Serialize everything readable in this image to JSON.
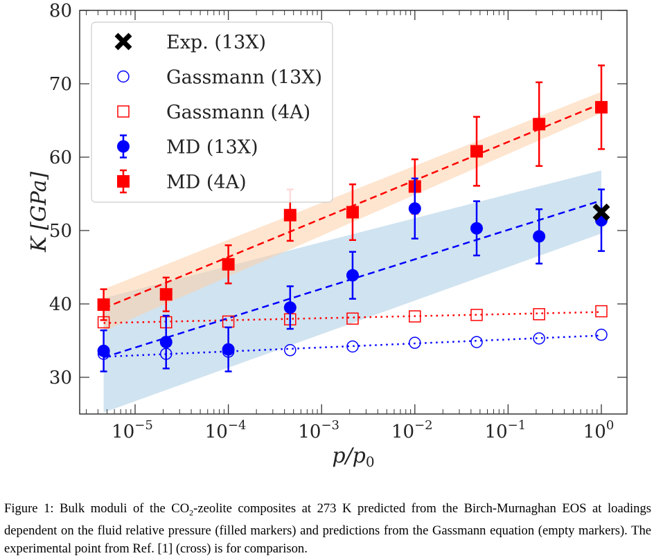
{
  "chart_data": {
    "type": "scatter",
    "xscale": "log",
    "xlim": [
      2.6e-06,
      1.9
    ],
    "ylim": [
      25,
      80
    ],
    "xlabel": "p/p0",
    "ylabel": "K [GPa]",
    "x_ticks": [
      {
        "exp": "−5",
        "value": 1e-05
      },
      {
        "exp": "−4",
        "value": 0.0001
      },
      {
        "exp": "−3",
        "value": 0.001
      },
      {
        "exp": "−2",
        "value": 0.01
      },
      {
        "exp": "−1",
        "value": 0.1
      },
      {
        "exp": "0",
        "value": 1
      }
    ],
    "y_ticks": [
      "30",
      "40",
      "50",
      "60",
      "70",
      "80"
    ],
    "legend_position": "top-left",
    "grid": false,
    "x": [
      4.6e-06,
      2.15e-05,
      0.0001,
      0.00046,
      0.00215,
      0.01,
      0.046,
      0.215,
      1
    ],
    "series": [
      {
        "name": "Exp. (13X)",
        "marker": "x",
        "color": "#000000",
        "x": [
          1
        ],
        "values": [
          52.5
        ]
      },
      {
        "name": "Gassmann (13X)",
        "marker": "open-circle",
        "color": "#0000ff",
        "values": [
          33.2,
          33.2,
          33.5,
          33.7,
          34.2,
          34.7,
          34.8,
          35.3,
          35.8
        ],
        "fit": {
          "style": "dotted",
          "from": 32.8,
          "to": 35.7
        }
      },
      {
        "name": "Gassmann (4A)",
        "marker": "open-square",
        "color": "#ff0000",
        "values": [
          37.5,
          37.5,
          37.6,
          37.9,
          38.0,
          38.3,
          38.5,
          38.6,
          39.0
        ],
        "fit": {
          "style": "dotted",
          "from": 37.4,
          "to": 38.9
        }
      },
      {
        "name": "MD (13X)",
        "marker": "filled-circle",
        "color": "#0000ff",
        "values": [
          33.6,
          34.8,
          33.8,
          39.5,
          43.9,
          53.0,
          50.3,
          49.2,
          51.4
        ],
        "errors": [
          2.8,
          3.6,
          3.0,
          2.9,
          3.2,
          4.1,
          3.7,
          3.7,
          4.2
        ],
        "fit": {
          "style": "dashed",
          "from": 32.7,
          "to": 54.1
        },
        "band": {
          "color": "#a9cce3",
          "lower_from": 25.2,
          "lower_to": 49.6,
          "upper_from": 40.8,
          "upper_to": 58.2
        }
      },
      {
        "name": "MD (4A)",
        "marker": "filled-square",
        "color": "#ff0000",
        "values": [
          39.9,
          41.3,
          45.4,
          52.1,
          52.5,
          56.0,
          60.8,
          64.5,
          66.8
        ],
        "errors": [
          2.1,
          2.3,
          2.6,
          3.5,
          3.8,
          3.7,
          4.7,
          5.7,
          5.7
        ],
        "fit": {
          "style": "dashed",
          "from": 39.4,
          "to": 67.3
        },
        "band": {
          "color": "#fdd0a8",
          "lower_from": 36.3,
          "lower_to": 66.0,
          "upper_from": 42.0,
          "upper_to": 68.9
        }
      }
    ]
  },
  "legend": [
    "Exp. (13X)",
    "Gassmann (13X)",
    "Gassmann (4A)",
    "MD (13X)",
    "MD (4A)"
  ],
  "caption": {
    "prefix": "Figure 1: Bulk moduli of the CO",
    "sub": "2",
    "rest": "-zeolite composites at 273 K predicted from the Birch-Murnaghan EOS at loadings dependent on the fluid relative pressure (filled markers) and predictions from the Gassmann equation (empty markers). The experimental point from Ref. [1] (cross) is for comparison."
  }
}
